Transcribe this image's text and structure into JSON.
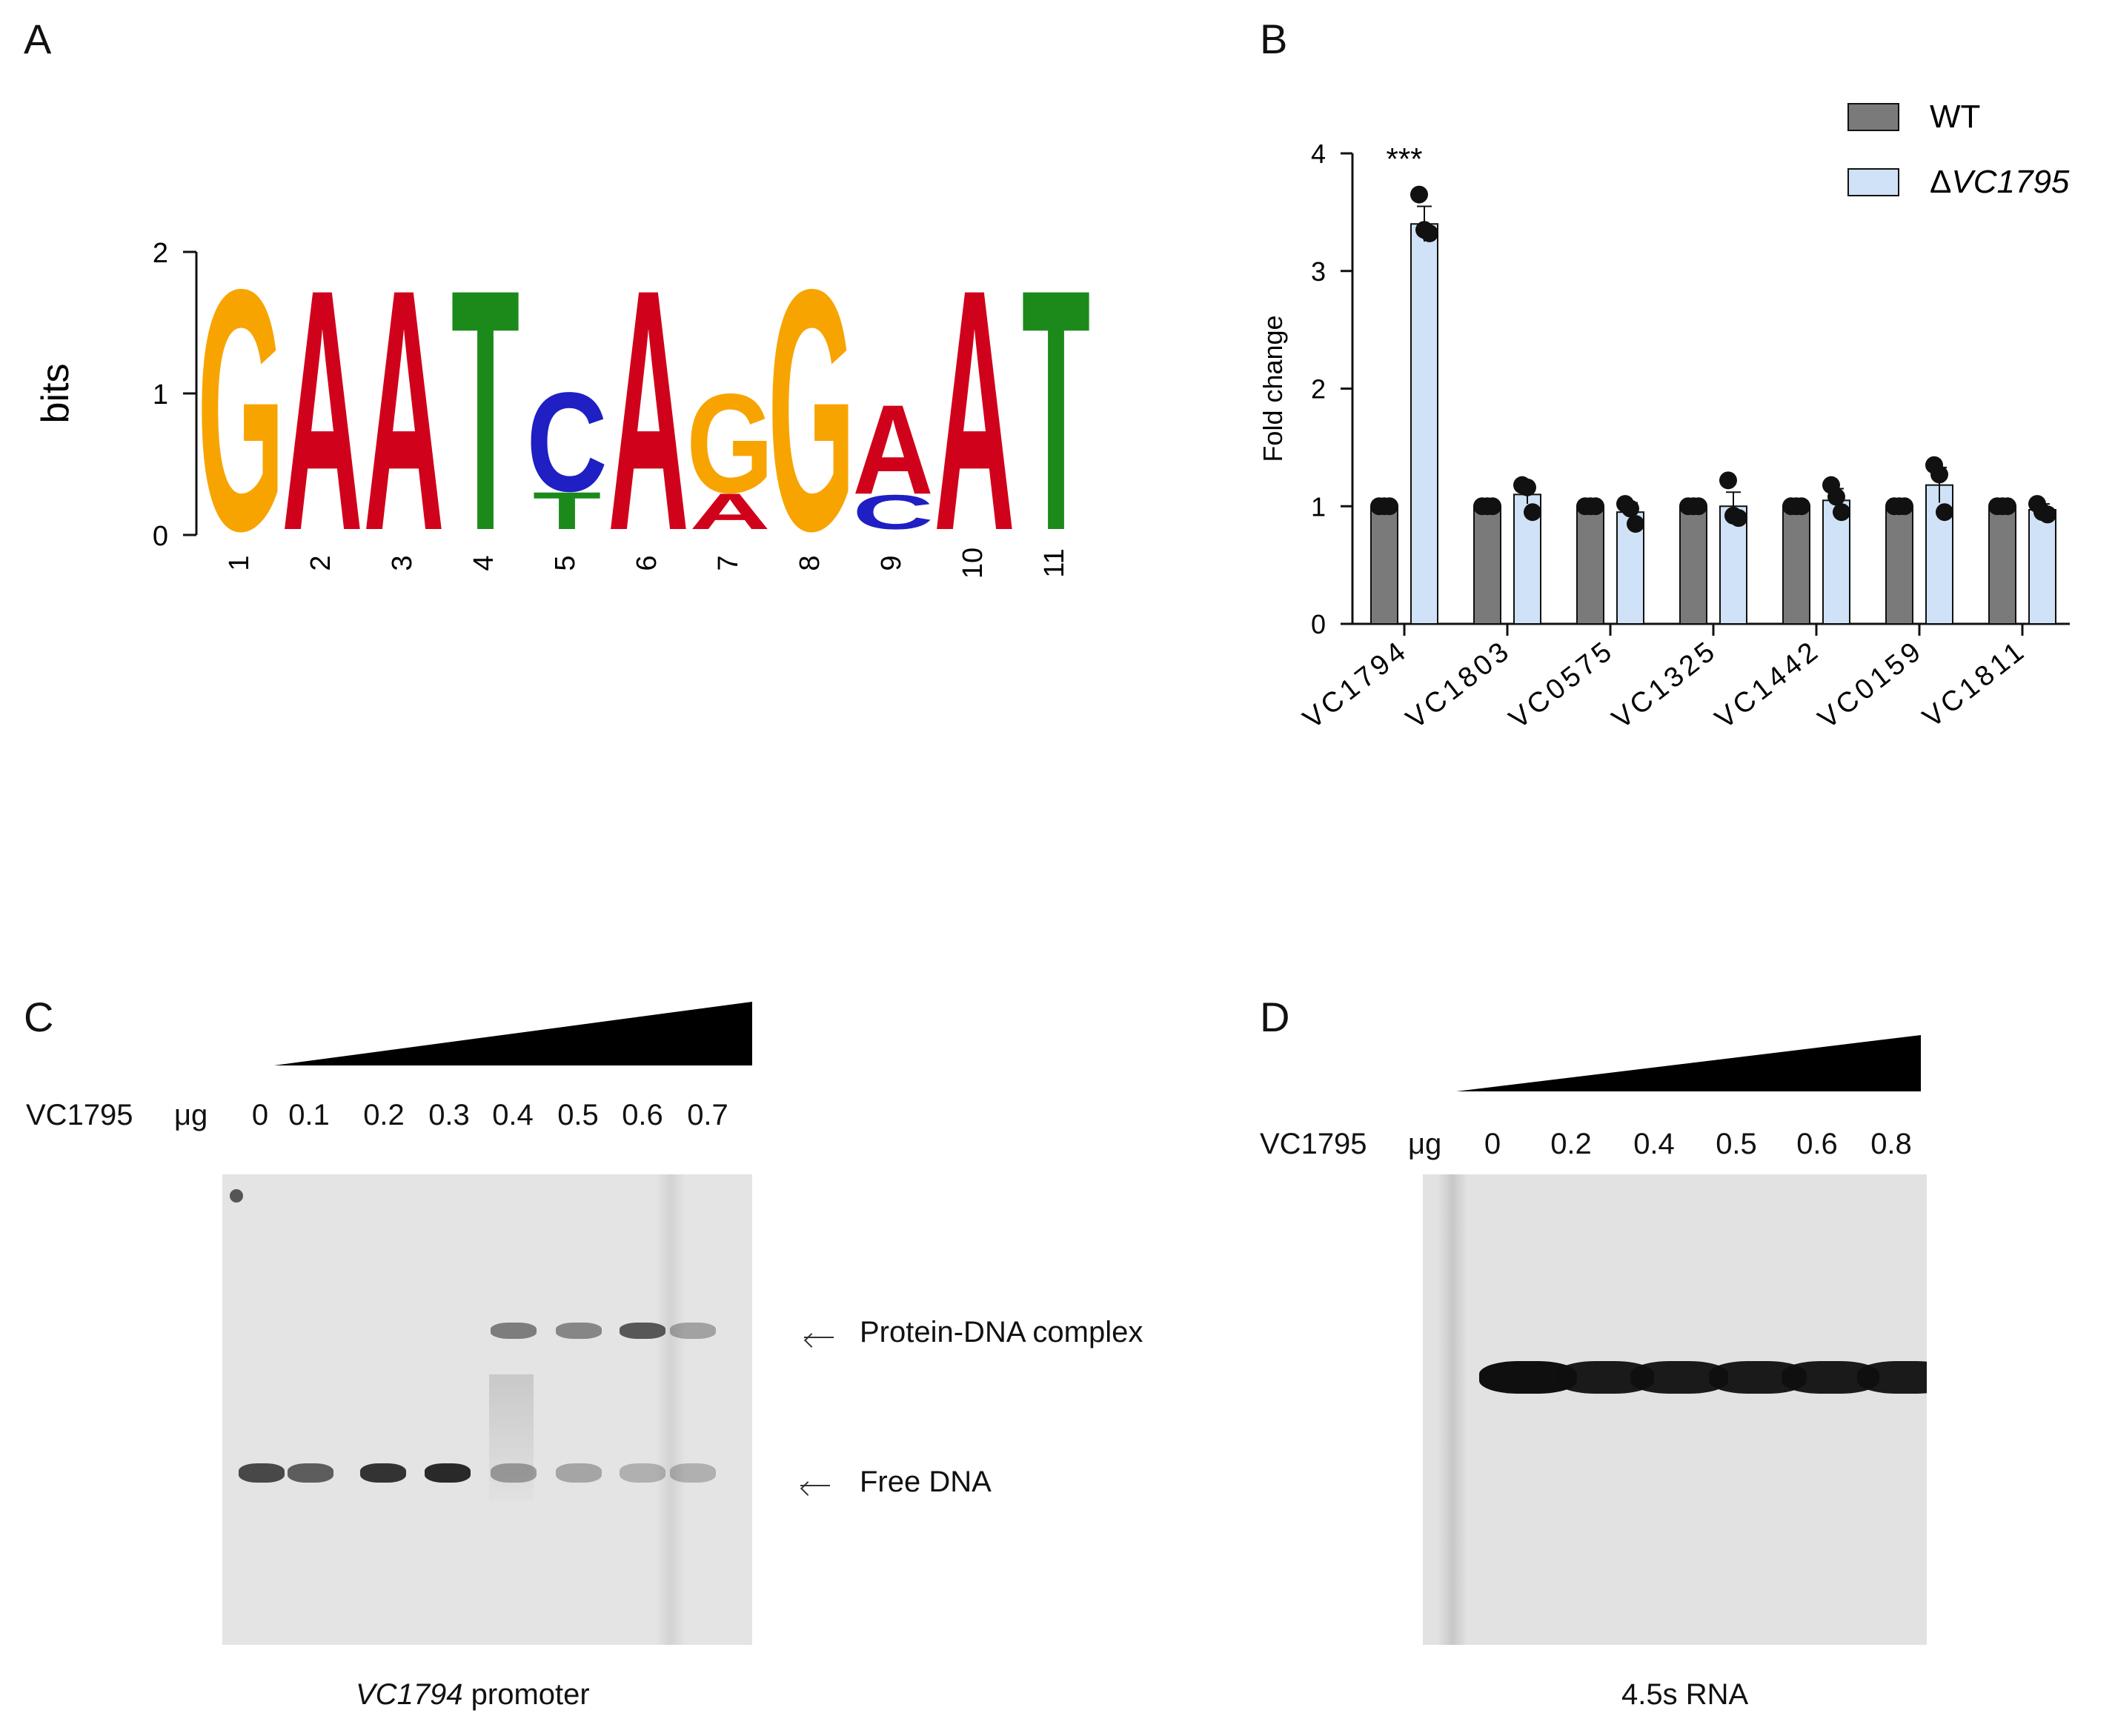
{
  "panels": {
    "a": {
      "letter": "A"
    },
    "b": {
      "letter": "B"
    },
    "c": {
      "letter": "C"
    },
    "d": {
      "letter": "D"
    }
  },
  "logo": {
    "ylabel": "bits",
    "yticks": [
      "0",
      "1",
      "2"
    ],
    "ymax": 2,
    "positions": [
      {
        "pos": "1",
        "stack": [
          {
            "base": "G",
            "bits": 1.75
          }
        ]
      },
      {
        "pos": "2",
        "stack": [
          {
            "base": "A",
            "bits": 1.75
          }
        ]
      },
      {
        "pos": "3",
        "stack": [
          {
            "base": "A",
            "bits": 1.75
          }
        ]
      },
      {
        "pos": "4",
        "stack": [
          {
            "base": "T",
            "bits": 1.75
          }
        ]
      },
      {
        "pos": "5",
        "stack": [
          {
            "base": "T",
            "bits": 0.27
          },
          {
            "base": "C",
            "bits": 0.72
          }
        ]
      },
      {
        "pos": "6",
        "stack": [
          {
            "base": "A",
            "bits": 1.75
          }
        ]
      },
      {
        "pos": "7",
        "stack": [
          {
            "base": "A",
            "bits": 0.26
          },
          {
            "base": "G",
            "bits": 0.72
          }
        ]
      },
      {
        "pos": "8",
        "stack": [
          {
            "base": "G",
            "bits": 1.75
          }
        ]
      },
      {
        "pos": "9",
        "stack": [
          {
            "base": "C",
            "bits": 0.25
          },
          {
            "base": "A",
            "bits": 0.65
          }
        ]
      },
      {
        "pos": "10",
        "stack": [
          {
            "base": "A",
            "bits": 1.75
          }
        ]
      },
      {
        "pos": "11",
        "stack": [
          {
            "base": "T",
            "bits": 1.75
          }
        ]
      }
    ],
    "colors": {
      "A": "#d0021b",
      "C": "#1f1fc4",
      "G": "#f7a400",
      "T": "#1b8a1b"
    }
  },
  "chart_data": {
    "type": "bar",
    "ylabel": "Fold change",
    "ylim": [
      0,
      4
    ],
    "yticks": [
      0,
      1,
      2,
      3,
      4
    ],
    "categories": [
      "VC1794",
      "VC1803",
      "VC0575",
      "VC1325",
      "VC1442",
      "VC0159",
      "VC1811"
    ],
    "series": [
      {
        "name": "WT",
        "color": "#7a7a7a",
        "values": [
          1.0,
          1.0,
          1.0,
          1.0,
          1.0,
          1.0,
          1.0
        ],
        "points": [
          [
            1.0,
            1.0,
            1.0
          ],
          [
            1.0,
            1.0,
            1.0
          ],
          [
            1.0,
            1.0,
            1.0
          ],
          [
            1.0,
            1.0,
            1.0
          ],
          [
            1.0,
            1.0,
            1.0
          ],
          [
            1.0,
            1.0,
            1.0
          ],
          [
            1.0,
            1.0,
            1.0
          ]
        ]
      },
      {
        "name": "ΔVC1795",
        "color": "#cfe2f7",
        "values": [
          3.4,
          1.1,
          0.95,
          1.0,
          1.05,
          1.18,
          0.97
        ],
        "errors": [
          0.15,
          0.08,
          0.08,
          0.12,
          0.1,
          0.15,
          0.05
        ],
        "points": [
          [
            3.65,
            3.35,
            3.32
          ],
          [
            1.18,
            1.16,
            0.95
          ],
          [
            1.02,
            0.98,
            0.85
          ],
          [
            1.22,
            0.92,
            0.9
          ],
          [
            1.18,
            1.08,
            0.95
          ],
          [
            1.35,
            1.27,
            0.95
          ],
          [
            1.02,
            0.95,
            0.93
          ]
        ]
      }
    ],
    "annotations": [
      {
        "category": "VC1794",
        "text": "***"
      }
    ],
    "legend": {
      "placement": "top-right"
    }
  },
  "gel_c": {
    "protein_label": "VC1795",
    "unit": "μg",
    "amounts": [
      "0",
      "0.1",
      "0.2",
      "0.3",
      "0.4",
      "0.5",
      "0.6",
      "0.7"
    ],
    "complex_label": "Protein-DNA complex",
    "free_label": "Free DNA",
    "caption_italic": "VC1794",
    "caption_rest": " promoter",
    "free_intensity": [
      0.75,
      0.65,
      0.85,
      0.9,
      0.35,
      0.3,
      0.25,
      0.25
    ],
    "complex_intensity": [
      0,
      0,
      0,
      0,
      0.55,
      0.5,
      0.75,
      0.35
    ]
  },
  "gel_d": {
    "protein_label": "VC1795",
    "unit": "μg",
    "amounts": [
      "0",
      "0.2",
      "0.4",
      "0.5",
      "0.6",
      "0.8"
    ],
    "caption": "4.5s RNA",
    "band_intensity": [
      1.0,
      0.95,
      0.95,
      0.95,
      0.95,
      0.95
    ]
  }
}
